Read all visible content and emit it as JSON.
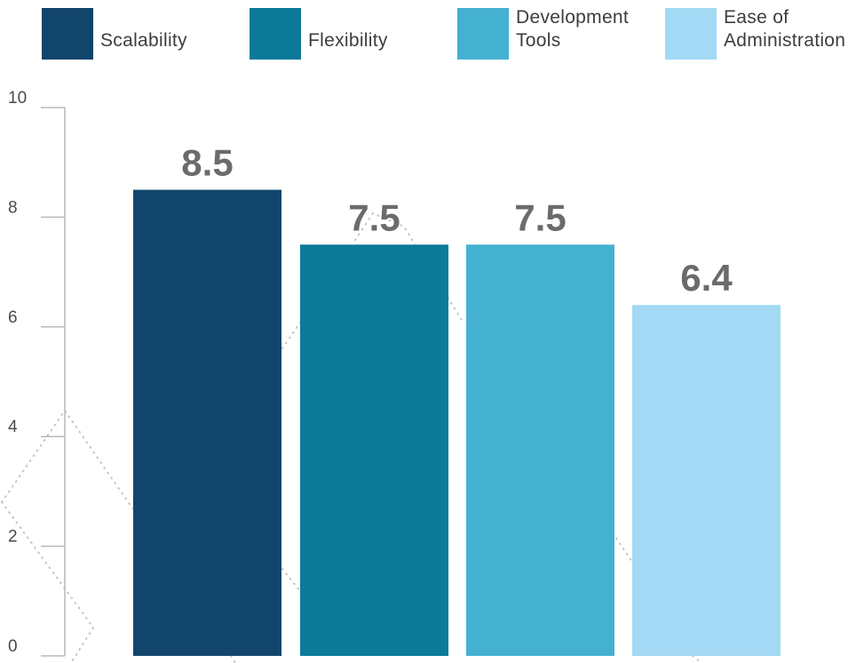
{
  "chart_data": {
    "type": "bar",
    "title": "",
    "xlabel": "",
    "ylabel": "",
    "ylim": [
      0,
      10
    ],
    "yticks": [
      "0",
      "2",
      "4",
      "6",
      "8",
      "10"
    ],
    "grid": false,
    "legend_position": "top",
    "categories": [
      "Scalability",
      "Flexibility",
      "Development\nTools",
      "Ease of\nAdministration"
    ],
    "values": [
      8.5,
      7.5,
      7.5,
      6.4
    ],
    "value_labels": [
      "8.5",
      "7.5",
      "7.5",
      "6.4"
    ],
    "colors": [
      "#12456b",
      "#0c7a99",
      "#44b1d1",
      "#a3d9f4"
    ],
    "axis_color": "#b9b9b9",
    "label_color": "#6b6b6b"
  }
}
